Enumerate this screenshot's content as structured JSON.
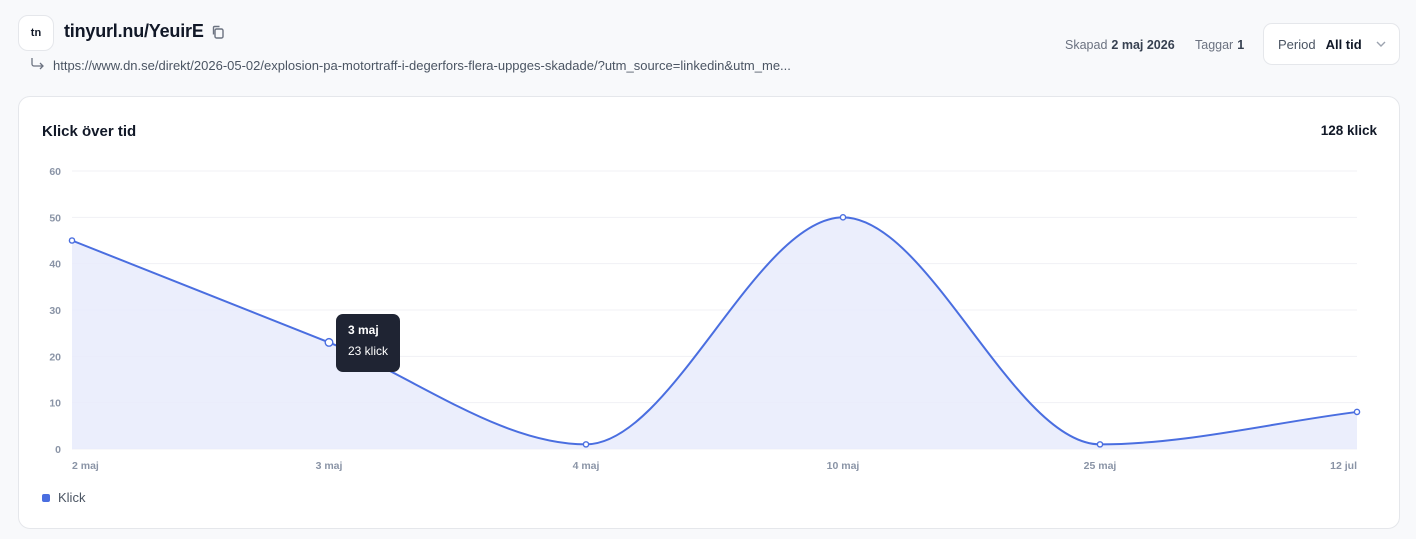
{
  "header": {
    "logo_text": "tn",
    "short_link": "tinyurl.nu/YeuirE",
    "destination_url": "https://www.dn.se/direkt/2026-05-02/explosion-pa-motortraff-i-degerfors-flera-uppges-skadade/?utm_source=linkedin&utm_me...",
    "created_label": "Skapad",
    "created_value": "2 maj 2026",
    "tags_label": "Taggar",
    "tags_value": "1",
    "period_label": "Period",
    "period_value": "All tid"
  },
  "card": {
    "title": "Klick över tid",
    "total": "128 klick"
  },
  "tooltip": {
    "title": "3 maj",
    "value": "23 klick"
  },
  "colors": {
    "line": "#4a6ee0",
    "area": "#e8ebfb",
    "tooltip_bg": "#1f2433"
  },
  "chart_data": {
    "type": "area",
    "categories": [
      "2 maj",
      "3 maj",
      "4 maj",
      "10 maj",
      "25 maj",
      "12 jul"
    ],
    "series": [
      {
        "name": "Klick",
        "values": [
          45,
          23,
          1,
          50,
          1,
          8
        ]
      }
    ],
    "yticks": [
      0,
      10,
      20,
      30,
      40,
      50,
      60
    ],
    "ylim": [
      0,
      60
    ],
    "grid": true,
    "legend": "bottom-left"
  }
}
